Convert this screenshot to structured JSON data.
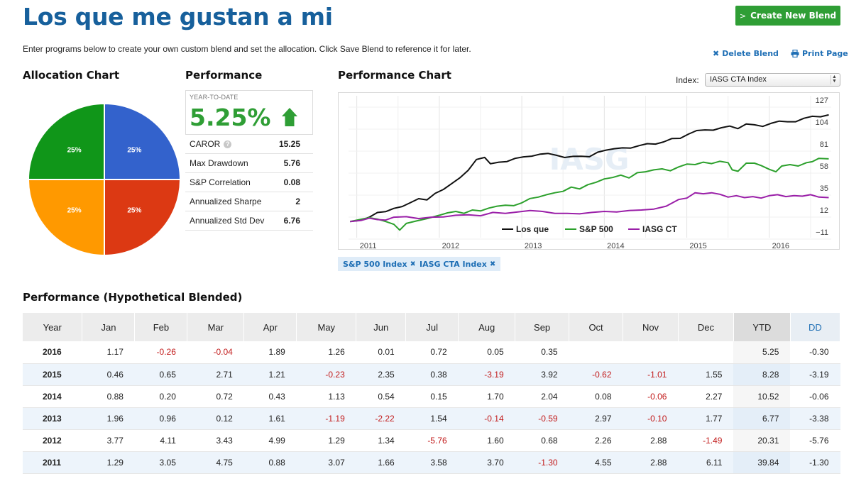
{
  "title": "Los que me gustan a mi",
  "create_button": "Create New Blend",
  "intro": "Enter programs below to create your own custom blend and set the allocation. Click Save Blend to reference it for later.",
  "delete_label": "Delete Blend",
  "print_label": "Print Page",
  "allocation": {
    "title": "Allocation Chart",
    "slices": [
      {
        "label": "25%",
        "value": 25,
        "color": "#3362cc"
      },
      {
        "label": "25%",
        "value": 25,
        "color": "#dc3913"
      },
      {
        "label": "25%",
        "value": 25,
        "color": "#ff9900"
      },
      {
        "label": "25%",
        "value": 25,
        "color": "#109619"
      }
    ]
  },
  "performance": {
    "title": "Performance",
    "ytd_label": "YEAR-TO-DATE",
    "ytd_value": "5.25%",
    "metrics": [
      {
        "label": "CAROR",
        "value": "15.25",
        "info": true
      },
      {
        "label": "Max Drawdown",
        "value": "5.76"
      },
      {
        "label": "S&P Correlation",
        "value": "0.08"
      },
      {
        "label": "Annualized Sharpe",
        "value": "2"
      },
      {
        "label": "Annualized Std Dev",
        "value": "6.76"
      }
    ]
  },
  "performance_chart": {
    "title": "Performance Chart",
    "index_label": "Index:",
    "index_selected": "IASG CTA Index",
    "watermark": "IASG",
    "tags": [
      "S&P 500 Index",
      "IASG CTA Index"
    ]
  },
  "chart_data": {
    "type": "line",
    "x_ticks": [
      "2011",
      "2012",
      "2013",
      "2014",
      "2015",
      "2016"
    ],
    "y_ticks": [
      "127",
      "104",
      "81",
      "58",
      "35",
      "12",
      "−11"
    ],
    "ylim": [
      -11,
      127
    ],
    "x_range": [
      2010.9,
      2016.75
    ],
    "legend_position": "bottom",
    "series": [
      {
        "name": "Los que",
        "color": "#111111",
        "points": [
          [
            2010.92,
            0
          ],
          [
            2011.05,
            1.3
          ],
          [
            2011.15,
            4.4
          ],
          [
            2011.25,
            9.4
          ],
          [
            2011.35,
            10.3
          ],
          [
            2011.45,
            13.7
          ],
          [
            2011.55,
            15.6
          ],
          [
            2011.65,
            19.7
          ],
          [
            2011.75,
            23.9
          ],
          [
            2011.85,
            22.5
          ],
          [
            2011.95,
            29.4
          ],
          [
            2012.05,
            33.5
          ],
          [
            2012.15,
            39.6
          ],
          [
            2012.25,
            45.7
          ],
          [
            2012.35,
            53.5
          ],
          [
            2012.45,
            64.8
          ],
          [
            2012.55,
            67.0
          ],
          [
            2012.62,
            60.4
          ],
          [
            2012.72,
            62.0
          ],
          [
            2012.82,
            62.7
          ],
          [
            2012.92,
            66.0
          ],
          [
            2013.02,
            67.6
          ],
          [
            2013.12,
            68.3
          ],
          [
            2013.22,
            70.4
          ],
          [
            2013.32,
            71.1
          ],
          [
            2013.42,
            69.2
          ],
          [
            2013.52,
            66.9
          ],
          [
            2013.62,
            68.1
          ],
          [
            2013.72,
            68.2
          ],
          [
            2013.82,
            67.7
          ],
          [
            2013.92,
            72.5
          ],
          [
            2014.02,
            74.6
          ],
          [
            2014.12,
            76.1
          ],
          [
            2014.22,
            77.0
          ],
          [
            2014.32,
            76.8
          ],
          [
            2014.42,
            79.3
          ],
          [
            2014.52,
            81.4
          ],
          [
            2014.62,
            80.9
          ],
          [
            2014.72,
            83.2
          ],
          [
            2014.82,
            86.8
          ],
          [
            2014.92,
            86.9
          ],
          [
            2015.02,
            91.4
          ],
          [
            2015.12,
            95.1
          ],
          [
            2015.22,
            95.8
          ],
          [
            2015.32,
            95.5
          ],
          [
            2015.42,
            98.1
          ],
          [
            2015.52,
            99.8
          ],
          [
            2015.62,
            97.1
          ],
          [
            2015.72,
            101.9
          ],
          [
            2015.82,
            101.1
          ],
          [
            2015.92,
            99.4
          ],
          [
            2016.02,
            102.6
          ],
          [
            2016.12,
            105.0
          ],
          [
            2016.22,
            104.3
          ],
          [
            2016.32,
            104.3
          ],
          [
            2016.42,
            107.9
          ],
          [
            2016.52,
            110.0
          ],
          [
            2016.62,
            109.5
          ],
          [
            2016.72,
            111.5
          ]
        ]
      },
      {
        "name": "S&P 500",
        "color": "#2ca02c",
        "points": [
          [
            2010.92,
            0
          ],
          [
            2011.05,
            2.3
          ],
          [
            2011.15,
            4.0
          ],
          [
            2011.25,
            2.5
          ],
          [
            2011.35,
            0.0
          ],
          [
            2011.45,
            -3.0
          ],
          [
            2011.52,
            -9.0
          ],
          [
            2011.6,
            -2.0
          ],
          [
            2011.72,
            0.5
          ],
          [
            2011.85,
            3.0
          ],
          [
            2012.0,
            6.5
          ],
          [
            2012.1,
            9.0
          ],
          [
            2012.2,
            10.5
          ],
          [
            2012.3,
            8.5
          ],
          [
            2012.4,
            12.0
          ],
          [
            2012.5,
            11.0
          ],
          [
            2012.6,
            14.0
          ],
          [
            2012.7,
            16.0
          ],
          [
            2012.8,
            17.0
          ],
          [
            2012.9,
            16.5
          ],
          [
            2013.0,
            19.5
          ],
          [
            2013.1,
            24.0
          ],
          [
            2013.2,
            25.5
          ],
          [
            2013.3,
            28.0
          ],
          [
            2013.4,
            30.0
          ],
          [
            2013.5,
            31.5
          ],
          [
            2013.6,
            36.0
          ],
          [
            2013.7,
            34.0
          ],
          [
            2013.8,
            38.5
          ],
          [
            2013.9,
            41.0
          ],
          [
            2014.0,
            44.5
          ],
          [
            2014.1,
            46.0
          ],
          [
            2014.2,
            48.5
          ],
          [
            2014.3,
            45.5
          ],
          [
            2014.4,
            51.0
          ],
          [
            2014.5,
            52.0
          ],
          [
            2014.6,
            54.0
          ],
          [
            2014.7,
            55.0
          ],
          [
            2014.8,
            53.0
          ],
          [
            2014.9,
            57.0
          ],
          [
            2015.0,
            60.0
          ],
          [
            2015.1,
            59.5
          ],
          [
            2015.2,
            62.0
          ],
          [
            2015.3,
            60.5
          ],
          [
            2015.4,
            63.0
          ],
          [
            2015.5,
            61.5
          ],
          [
            2015.55,
            54.0
          ],
          [
            2015.62,
            52.5
          ],
          [
            2015.72,
            61.0
          ],
          [
            2015.82,
            61.0
          ],
          [
            2015.9,
            58.5
          ],
          [
            2016.0,
            54.5
          ],
          [
            2016.08,
            52.0
          ],
          [
            2016.15,
            58.0
          ],
          [
            2016.25,
            59.5
          ],
          [
            2016.35,
            58.0
          ],
          [
            2016.45,
            61.5
          ],
          [
            2016.52,
            62.5
          ],
          [
            2016.6,
            66.0
          ],
          [
            2016.72,
            65.5
          ]
        ]
      },
      {
        "name": "IASG CT",
        "color": "#9a1fa8",
        "points": [
          [
            2010.92,
            0
          ],
          [
            2011.05,
            1.0
          ],
          [
            2011.15,
            3.5
          ],
          [
            2011.25,
            2.0
          ],
          [
            2011.35,
            1.5
          ],
          [
            2011.45,
            4.5
          ],
          [
            2011.6,
            5.0
          ],
          [
            2011.75,
            3.0
          ],
          [
            2011.9,
            4.5
          ],
          [
            2012.05,
            4.8
          ],
          [
            2012.2,
            6.5
          ],
          [
            2012.35,
            7.0
          ],
          [
            2012.5,
            6.0
          ],
          [
            2012.65,
            9.5
          ],
          [
            2012.8,
            8.5
          ],
          [
            2012.95,
            10.0
          ],
          [
            2013.1,
            11.5
          ],
          [
            2013.25,
            10.5
          ],
          [
            2013.4,
            8.5
          ],
          [
            2013.55,
            8.5
          ],
          [
            2013.7,
            8.0
          ],
          [
            2013.85,
            9.5
          ],
          [
            2014.0,
            10.5
          ],
          [
            2014.15,
            10.0
          ],
          [
            2014.3,
            11.5
          ],
          [
            2014.45,
            12.0
          ],
          [
            2014.6,
            13.0
          ],
          [
            2014.75,
            16.0
          ],
          [
            2014.9,
            23.0
          ],
          [
            2015.0,
            24.5
          ],
          [
            2015.1,
            30.0
          ],
          [
            2015.2,
            29.0
          ],
          [
            2015.3,
            30.0
          ],
          [
            2015.4,
            28.5
          ],
          [
            2015.5,
            25.5
          ],
          [
            2015.6,
            27.0
          ],
          [
            2015.7,
            25.0
          ],
          [
            2015.8,
            26.0
          ],
          [
            2015.9,
            24.5
          ],
          [
            2016.0,
            27.0
          ],
          [
            2016.1,
            28.0
          ],
          [
            2016.2,
            26.0
          ],
          [
            2016.3,
            27.0
          ],
          [
            2016.4,
            26.5
          ],
          [
            2016.5,
            28.0
          ],
          [
            2016.6,
            25.5
          ],
          [
            2016.72,
            25.0
          ]
        ]
      }
    ]
  },
  "blended": {
    "title": "Performance (Hypothetical Blended)",
    "columns": [
      "Year",
      "Jan",
      "Feb",
      "Mar",
      "Apr",
      "May",
      "Jun",
      "Jul",
      "Aug",
      "Sep",
      "Oct",
      "Nov",
      "Dec",
      "YTD",
      "DD"
    ],
    "rows": [
      [
        "2016",
        "1.17",
        "-0.26",
        "-0.04",
        "1.89",
        "1.26",
        "0.01",
        "0.72",
        "0.05",
        "0.35",
        "",
        "",
        "",
        "5.25",
        "-0.30"
      ],
      [
        "2015",
        "0.46",
        "0.65",
        "2.71",
        "1.21",
        "-0.23",
        "2.35",
        "0.38",
        "-3.19",
        "3.92",
        "-0.62",
        "-1.01",
        "1.55",
        "8.28",
        "-3.19"
      ],
      [
        "2014",
        "0.88",
        "0.20",
        "0.72",
        "0.43",
        "1.13",
        "0.54",
        "0.15",
        "1.70",
        "2.04",
        "0.08",
        "-0.06",
        "2.27",
        "10.52",
        "-0.06"
      ],
      [
        "2013",
        "1.96",
        "0.96",
        "0.12",
        "1.61",
        "-1.19",
        "-2.22",
        "1.54",
        "-0.14",
        "-0.59",
        "2.97",
        "-0.10",
        "1.77",
        "6.77",
        "-3.38"
      ],
      [
        "2012",
        "3.77",
        "4.11",
        "3.43",
        "4.99",
        "1.29",
        "1.34",
        "-5.76",
        "1.60",
        "0.68",
        "2.26",
        "2.88",
        "-1.49",
        "20.31",
        "-5.76"
      ],
      [
        "2011",
        "1.29",
        "3.05",
        "4.75",
        "0.88",
        "3.07",
        "1.66",
        "3.58",
        "3.70",
        "-1.30",
        "4.55",
        "2.88",
        "6.11",
        "39.84",
        "-1.30"
      ]
    ]
  }
}
